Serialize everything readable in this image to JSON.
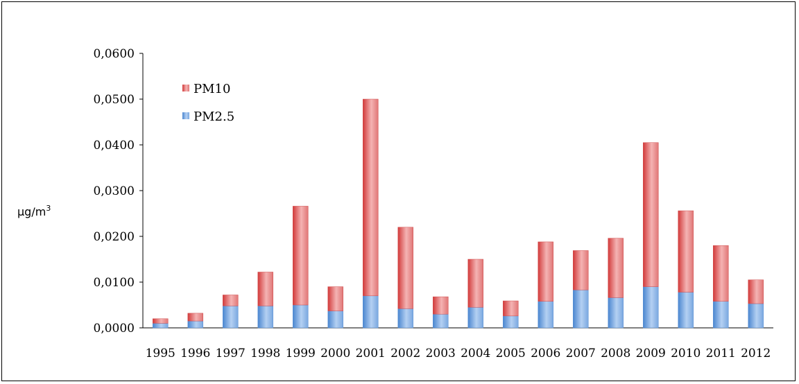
{
  "chart_data": {
    "type": "bar",
    "stacked": true,
    "categories": [
      "1995",
      "1996",
      "1997",
      "1998",
      "1999",
      "2000",
      "2001",
      "2002",
      "2003",
      "2004",
      "2005",
      "2006",
      "2007",
      "2008",
      "2009",
      "2010",
      "2011",
      "2012"
    ],
    "series": [
      {
        "name": "PM2.5",
        "color": "#6fa0dc",
        "values": [
          0.001,
          0.0015,
          0.0048,
          0.0048,
          0.005,
          0.0037,
          0.007,
          0.0042,
          0.003,
          0.0045,
          0.0026,
          0.0058,
          0.0083,
          0.0066,
          0.009,
          0.0078,
          0.0058,
          0.0053
        ]
      },
      {
        "name": "PM10",
        "color": "#e06666",
        "values": [
          0.001,
          0.0017,
          0.0024,
          0.0074,
          0.0216,
          0.0053,
          0.043,
          0.0178,
          0.0038,
          0.0105,
          0.0033,
          0.013,
          0.0086,
          0.013,
          0.0315,
          0.0178,
          0.0122,
          0.0052
        ]
      }
    ],
    "y_ticks": [
      "0,0000",
      "0,0100",
      "0,0200",
      "0,0300",
      "0,0400",
      "0,0500",
      "0,0600"
    ],
    "ylim": [
      0,
      0.06
    ],
    "ylabel_base": "µg/m",
    "ylabel_sup": "3",
    "legend_position": "top-left",
    "legend": [
      "PM10",
      "PM2.5"
    ],
    "grid": false
  }
}
